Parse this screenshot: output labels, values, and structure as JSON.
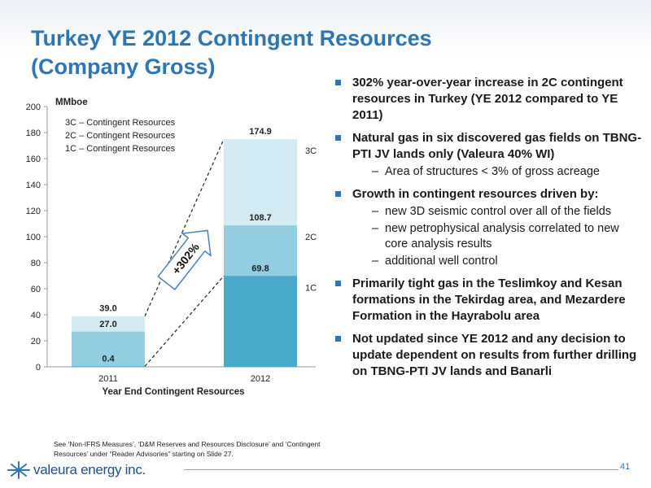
{
  "slide": {
    "title_line1": "Turkey YE 2012 Contingent Resources",
    "title_line2": "(Company Gross)",
    "page_number": "41"
  },
  "bullets": [
    {
      "text": "302% year-over-year increase in 2C contingent resources in Turkey (YE 2012 compared to YE 2011)",
      "subs": []
    },
    {
      "text": "Natural gas in six discovered gas fields on TBNG-PTI JV lands only (Valeura 40% WI)",
      "subs": [
        "Area of structures < 3% of gross acreage"
      ]
    },
    {
      "text": "Growth in contingent resources driven by:",
      "subs": [
        "new 3D seismic control over all of the fields",
        "new petrophysical analysis correlated to new core analysis results",
        "additional well control"
      ]
    },
    {
      "text": "Primarily tight gas in the Teslimkoy and Kesan formations in the Tekirdag area, and Mezardere Formation in the Hayrabolu area",
      "subs": []
    },
    {
      "text": "Not updated since YE 2012 and any decision to update dependent on results from further drilling on TBNG-PTI JV lands and Banarli",
      "subs": []
    }
  ],
  "footnote": "See ‘Non-IFRS Measures’, ‘D&M Reserves and Resources Disclosure’ and ‘Contingent Resources’ under “Reader Advisories” starting on Slide 27.",
  "logo": {
    "text": "valeura energy inc.",
    "icon": "valeura-logo-icon"
  },
  "chart_data": {
    "type": "bar",
    "stacked": true,
    "title": "",
    "unit_label": "MMboe",
    "xlabel": "Year End Contingent Resources",
    "ylabel": "",
    "ylim": [
      0,
      200
    ],
    "yticks": [
      0,
      20,
      40,
      60,
      80,
      100,
      120,
      140,
      160,
      180,
      200
    ],
    "categories": [
      "2011",
      "2012"
    ],
    "series": [
      {
        "name": "1C – Contingent Resources",
        "cumulative": [
          0.4,
          69.8
        ],
        "labels": [
          "0.4",
          "69.8"
        ],
        "color": "#4aa8c9",
        "end_tag": "1C"
      },
      {
        "name": "2C – Contingent Resources",
        "cumulative": [
          27.0,
          108.7
        ],
        "labels": [
          "27.0",
          "108.7"
        ],
        "color": "#93cde0",
        "end_tag": "2C"
      },
      {
        "name": "3C – Contingent Resources",
        "cumulative": [
          39.0,
          174.9
        ],
        "labels": [
          "39.0",
          "174.9"
        ],
        "color": "#d5ebf3",
        "end_tag": "3C"
      }
    ],
    "legend_position": "top-left",
    "grid": false,
    "annotation": {
      "text": "+302%"
    }
  }
}
